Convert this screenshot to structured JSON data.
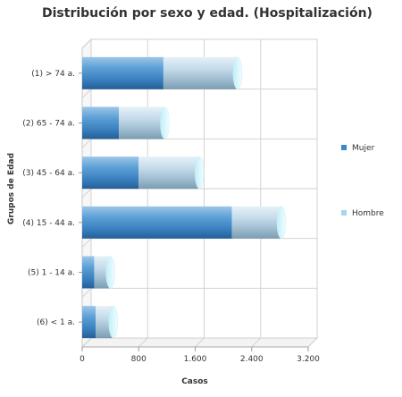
{
  "chart_data": {
    "type": "bar",
    "orientation": "horizontal",
    "stacked": true,
    "style": "3d-cylinder",
    "title": "Distribución por sexo y edad. (Hospitalización)",
    "xlabel": "Casos",
    "ylabel": "Grupos de Edad",
    "categories": [
      "(1) > 74 a.",
      "(2) 65 - 74 a.",
      "(3) 45 - 64 a.",
      "(4) 15 - 44 a.",
      "(5) 1 - 14 a.",
      "(6) < 1 a."
    ],
    "series": [
      {
        "name": "Mujer",
        "values": [
          1150,
          520,
          800,
          2120,
          170,
          190
        ],
        "color": "#3d88c9"
      },
      {
        "name": "Hombre",
        "values": [
          1050,
          650,
          860,
          700,
          230,
          250
        ],
        "color": "#a9d3ee"
      }
    ],
    "xlim": [
      0,
      3200
    ],
    "xticks": [
      "0",
      "800",
      "1.600",
      "2.400",
      "3.200"
    ],
    "xtick_values": [
      0,
      800,
      1600,
      2400,
      3200
    ],
    "grid": true,
    "legend_position": "right"
  }
}
